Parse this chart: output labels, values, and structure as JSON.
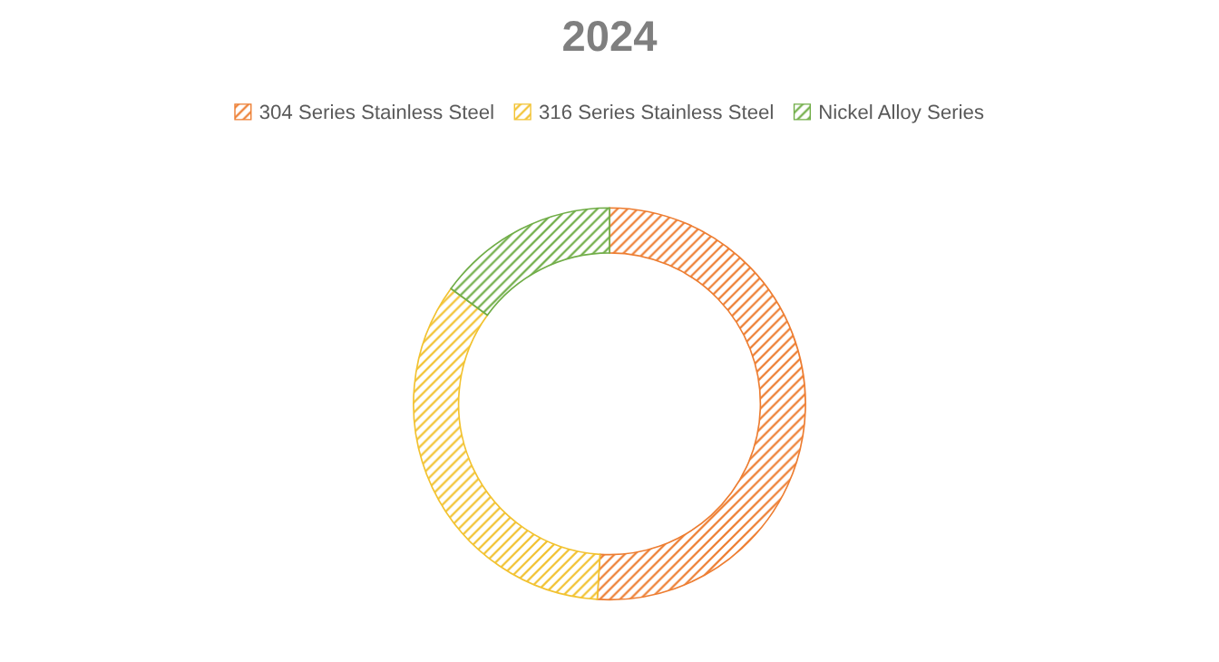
{
  "chart_data": {
    "type": "donut",
    "title": "2024",
    "categories": [
      "304 Series Stainless Steel",
      "316 Series Stainless Steel",
      "Nickel Alloy Series"
    ],
    "values": [
      51,
      34,
      15
    ],
    "colors": [
      "#ed7d31",
      "#f2c230",
      "#70ad47"
    ],
    "legend": "top"
  }
}
